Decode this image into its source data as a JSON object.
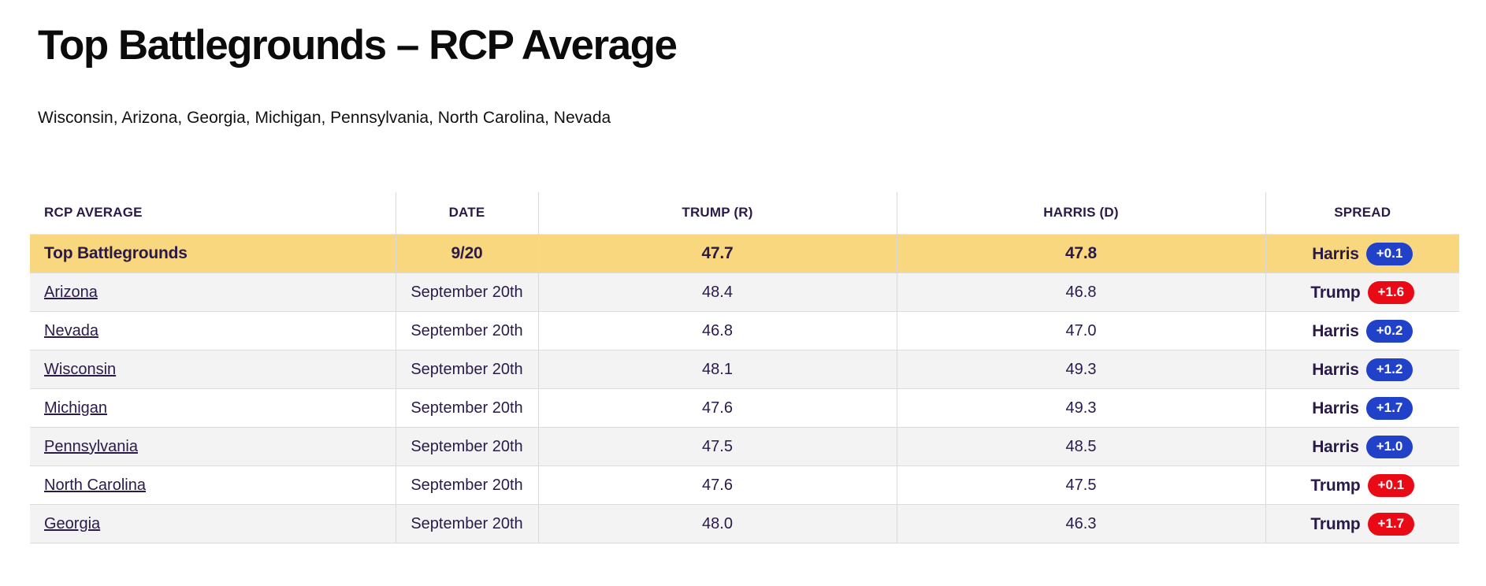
{
  "page": {
    "title": "Top Battlegrounds – RCP Average",
    "subtitle": "Wisconsin, Arizona, Georgia, Michigan, Pennsylvania, North Carolina, Nevada"
  },
  "table": {
    "columns": [
      "RCP AVERAGE",
      "DATE",
      "TRUMP (R)",
      "HARRIS (D)",
      "SPREAD"
    ],
    "summary": {
      "label": "Top Battlegrounds",
      "date": "9/20",
      "trump": "47.7",
      "harris": "47.8",
      "spread_leader": "Harris",
      "spread_value": "+0.1",
      "spread_party": "dem"
    },
    "rows": [
      {
        "state": "Arizona",
        "date": "September 20th",
        "trump": "48.4",
        "harris": "46.8",
        "spread_leader": "Trump",
        "spread_value": "+1.6",
        "spread_party": "rep"
      },
      {
        "state": "Nevada",
        "date": "September 20th",
        "trump": "46.8",
        "harris": "47.0",
        "spread_leader": "Harris",
        "spread_value": "+0.2",
        "spread_party": "dem"
      },
      {
        "state": "Wisconsin",
        "date": "September 20th",
        "trump": "48.1",
        "harris": "49.3",
        "spread_leader": "Harris",
        "spread_value": "+1.2",
        "spread_party": "dem"
      },
      {
        "state": "Michigan",
        "date": "September 20th",
        "trump": "47.6",
        "harris": "49.3",
        "spread_leader": "Harris",
        "spread_value": "+1.7",
        "spread_party": "dem"
      },
      {
        "state": "Pennsylvania",
        "date": "September 20th",
        "trump": "47.5",
        "harris": "48.5",
        "spread_leader": "Harris",
        "spread_value": "+1.0",
        "spread_party": "dem"
      },
      {
        "state": "North Carolina",
        "date": "September 20th",
        "trump": "47.6",
        "harris": "47.5",
        "spread_leader": "Trump",
        "spread_value": "+0.1",
        "spread_party": "rep"
      },
      {
        "state": "Georgia",
        "date": "September 20th",
        "trump": "48.0",
        "harris": "46.3",
        "spread_leader": "Trump",
        "spread_value": "+1.7",
        "spread_party": "rep"
      }
    ]
  },
  "colors": {
    "highlight_row_bg": "#f9d77e",
    "alt_row_bg": "#f3f3f3",
    "dem_pill": "#2141c8",
    "rep_pill": "#ea0a16",
    "table_text": "#2a1a4a"
  }
}
